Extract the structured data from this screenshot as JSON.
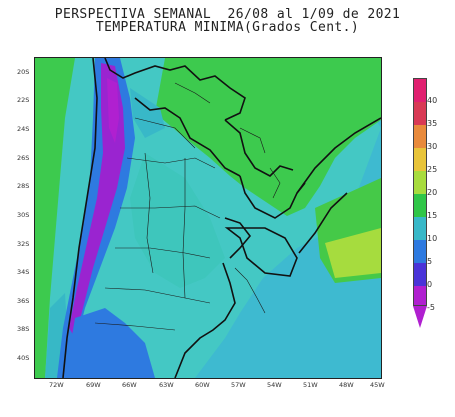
{
  "title": {
    "line1": "PERSPECTIVA SEMANAL  26/08 al 1/09 de 2021",
    "line2": "TEMPERATURA MINIMA(Grados Cent.)"
  },
  "latitude_labels": [
    "20S",
    "22S",
    "24S",
    "26S",
    "28S",
    "30S",
    "32S",
    "34S",
    "36S",
    "38S",
    "40S"
  ],
  "longitude_labels": [
    "72W",
    "69W",
    "66W",
    "63W",
    "60W",
    "57W",
    "54W",
    "51W",
    "48W",
    "45W"
  ],
  "legend": {
    "labels": [
      "40",
      "35",
      "30",
      "25",
      "20",
      "15",
      "10",
      "5",
      "0",
      "-5"
    ],
    "colors": {
      "above_40": "#d0306a",
      "35_40": "#e02070",
      "30_35": "#d83a55",
      "25_30": "#e88a3c",
      "20_25": "#e8c43a",
      "15_20": "#a8dc3e",
      "10_15": "#30c648",
      "5_10": "#38b8c8",
      "0_5": "#2e7ae0",
      "below_0": "#4a34d8",
      "below_minus5": "#b020d0"
    }
  }
}
